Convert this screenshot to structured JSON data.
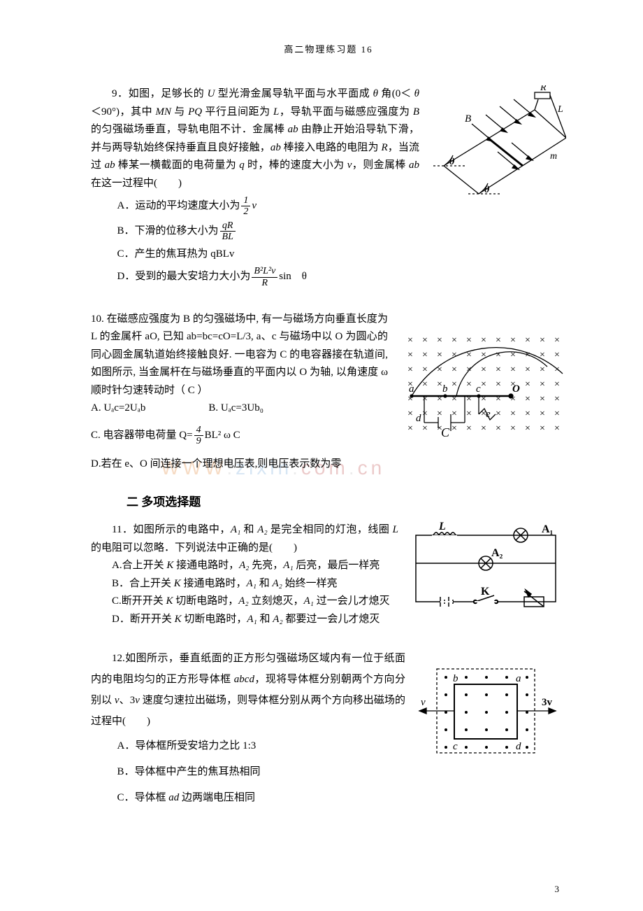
{
  "header": "高二物理练习题   16",
  "page_number": "3",
  "watermark_chars": [
    "W",
    "W",
    "W",
    ".",
    "z",
    "i",
    "x",
    "i",
    "n",
    ".",
    "c",
    "o",
    "m",
    ".",
    "c",
    "n"
  ],
  "watermark_colors": [
    "#e89a58",
    "#e89a58",
    "#e89a58",
    "#c9c9c9",
    "#8fb8e0",
    "#8fb8e0",
    "#8fb8e0",
    "#8fb8e0",
    "#8fb8e0",
    "#c9c9c9",
    "#c96a6a",
    "#c96a6a",
    "#c96a6a",
    "#c9c9c9",
    "#c96a6a",
    "#c96a6a"
  ],
  "q9": {
    "stem_1": "9．如图，足够长的 ",
    "stem_2": " 型光滑金属导轨平面与水平面成 ",
    "stem_3": " 角(0＜ ",
    "stem_4": " ＜90°)，其中 ",
    "stem_5": " 与 ",
    "stem_6": " 平行且间距为 ",
    "stem_7": "，导轨平面与磁感应强度为 ",
    "stem_8": " 的匀强磁场垂直，导轨电阻不计．金属棒 ",
    "stem_9": " 由静止开始沿导轨下滑，并与两导轨始终保持垂直且良好接触，",
    "stem_10": " 棒接入电路的电阻为 ",
    "stem_11": "，当流过 ",
    "stem_12": " 棒某一横截面的电荷量为 ",
    "stem_13": " 时，棒的速度大小为 ",
    "stem_14": "，则金属棒 ",
    "stem_15": " 在这一过程中(　　)",
    "U": "U",
    "theta": "θ",
    "MN": "MN",
    "PQ": "PQ",
    "L": "L",
    "B": "B",
    "ab": "ab",
    "R": "R",
    "q": "q",
    "v": "v",
    "optA_1": "A．运动的平均速度大小为",
    "optA_frac_num": "1",
    "optA_frac_den": "2",
    "optA_2": "v",
    "optB_1": "B．下滑的位移大小为",
    "optB_frac_num": "qR",
    "optB_frac_den": "BL",
    "optC": "C．产生的焦耳热为 qBLv",
    "optD_1": "D．受到的最大安培力大小为",
    "optD_frac_num": "B²L²v",
    "optD_frac_den": "R",
    "optD_2": "sin　θ",
    "fig": {
      "B": "B",
      "R": "R",
      "L": "L",
      "m": "m",
      "theta": "θ"
    }
  },
  "q10": {
    "stem": "10. 在磁感应强度为 B 的匀强磁场中, 有一与磁场方向垂直长度为 L 的金属杆 aO, 已知 ab=bc=cO=L/3, a、c 与磁场中以 O 为圆心的同心圆金属轨道始终接触良好. 一电容为 C 的电容器接在轨道间, 如图所示, 当金属杆在与磁场垂直的平面内以 O 为轴, 以角速度 ω 顺时针匀速转动时（  C  ）",
    "optA": "A. Uₐc=2Uₐb",
    "optB": "B. Uₐc=3Ub₀",
    "optC_1": "C. 电容器带电荷量 Q=",
    "optC_frac_num": "4",
    "optC_frac_den": "9",
    "optC_2": "BL² ω C",
    "optD": "D.若在 e、O 间连接一个理想电压表,则电压表示数为零",
    "fig": {
      "a": "a",
      "b": "b",
      "c": "c",
      "d": "d",
      "e": "e",
      "O": "O",
      "C": "C"
    }
  },
  "section2_title": "二  多项选择题",
  "q11": {
    "stem_1": "11．如图所示的电路中，",
    "stem_2": " 和 ",
    "stem_3": " 是完全相同的灯泡，线圈 ",
    "stem_4": " 的电阻可以忽略．下列说法中正确的是(　　)",
    "A1": "A₁",
    "A2": "A₂",
    "L": "L",
    "optA_1": "A.合上开关 ",
    "optA_2": " 接通电路时，",
    "optA_3": " 先亮，",
    "optA_4": " 后亮，最后一样亮",
    "optB_1": "B．合上开关 ",
    "optB_2": " 接通电路时，",
    "optB_3": " 和 ",
    "optB_4": " 始终一样亮",
    "optC_1": "C.断开开关 ",
    "optC_2": " 切断电路时，",
    "optC_3": " 立刻熄灭，",
    "optC_4": " 过一会儿才熄灭",
    "optD_1": "D．断开开关 ",
    "optD_2": " 切断电路时，",
    "optD_3": " 和 ",
    "optD_4": " 都要过一会儿才熄灭",
    "K": "K",
    "fig": {
      "L": "L",
      "A1": "A₁",
      "A2": "A₂",
      "K": "K"
    }
  },
  "q12": {
    "stem_1": "12.如图所示，垂直纸面的正方形匀强磁场区域内有一位于纸面内的电阻均匀的正方形导体框 ",
    "stem_2": "，现将导体框分别朝两个方向分别以 ",
    "stem_3": "、3",
    "stem_4": " 速度匀速拉出磁场，则导体框分别从两个方向移出磁场的过程中(　　)",
    "abcd": "abcd",
    "v": "v",
    "optA": "A．导体框所受安培力之比 1:3",
    "optB": "B．导体框中产生的焦耳热相同",
    "optC_1": "C．导体框 ",
    "optC_2": " 边两端电压相同",
    "ad": "ad",
    "fig": {
      "a": "a",
      "b": "b",
      "c": "c",
      "d": "d",
      "v": "v",
      "v3": "3v"
    }
  }
}
